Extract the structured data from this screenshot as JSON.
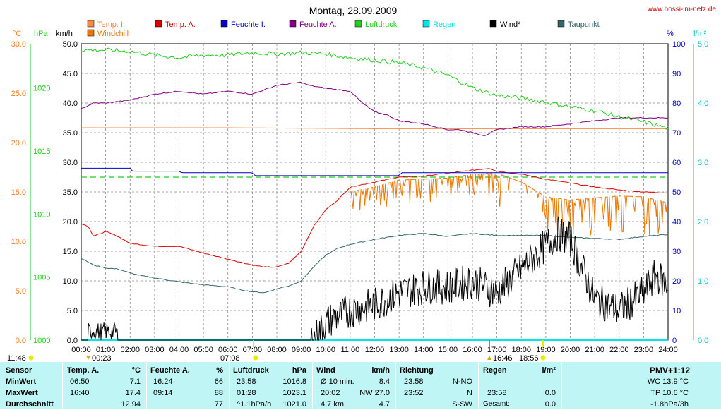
{
  "page": {
    "title": "Montag, 28.09.2009",
    "site": "www.hossi-im-netz.de"
  },
  "chart_data": {
    "type": "line",
    "title": "Montag, 28.09.2009",
    "x_ticks": [
      "00:00",
      "01:00",
      "02:00",
      "03:00",
      "04:00",
      "05:00",
      "06:00",
      "07:00",
      "08:00",
      "09:00",
      "10:00",
      "11:00",
      "12:00",
      "13:00",
      "14:00",
      "15:00",
      "16:00",
      "17:00",
      "18:00",
      "19:00",
      "20:00",
      "21:00",
      "22:00",
      "23:00",
      "24:00"
    ],
    "axes": {
      "temp": {
        "label": "°C",
        "min": 0,
        "max": 30,
        "ticks": [
          "0.0",
          "5.0",
          "10.0",
          "15.0",
          "20.0",
          "25.0",
          "30.0"
        ],
        "color": "#ff7f27"
      },
      "pressure": {
        "label": "hPa",
        "min": 1000,
        "max": 1023.5,
        "ticks": [
          "1000",
          "1005",
          "1010",
          "1015",
          "1020"
        ],
        "color": "#1ad01a"
      },
      "wind": {
        "label": "km/h",
        "min": 0,
        "max": 50,
        "ticks": [
          "0.0",
          "5.0",
          "10.0",
          "15.0",
          "20.0",
          "25.0",
          "30.0",
          "35.0",
          "40.0",
          "45.0",
          "50.0"
        ],
        "color": "#000000"
      },
      "humidity": {
        "label": "%",
        "min": 0,
        "max": 100,
        "ticks": [
          "0",
          "10",
          "20",
          "30",
          "40",
          "50",
          "60",
          "70",
          "80",
          "90",
          "100"
        ],
        "color": "#0000cc"
      },
      "rain": {
        "label": "l/m²",
        "min": 0,
        "max": 5,
        "ticks": [
          "0.0",
          "1.0",
          "2.0",
          "3.0",
          "4.0",
          "5.0"
        ],
        "color": "#00c8c8"
      }
    },
    "legend": [
      {
        "name": "Temp. I.",
        "color": "#ff8844"
      },
      {
        "name": "Temp. A.",
        "color": "#dd0000"
      },
      {
        "name": "Feuchte I.",
        "color": "#0000cc"
      },
      {
        "name": "Feuchte A.",
        "color": "#800080"
      },
      {
        "name": "Luftdruck",
        "color": "#22cc22"
      },
      {
        "name": "Regen",
        "color": "#00e5e5"
      },
      {
        "name": "Wind*",
        "color": "#000000"
      },
      {
        "name": "Taupunkt",
        "color": "#336666"
      },
      {
        "name": "Windchill",
        "color": "#ee7700"
      }
    ],
    "series": [
      {
        "key": "temp_in",
        "axis": "temp",
        "color": "#ff8844",
        "x": [
          0,
          6,
          12,
          18,
          24
        ],
        "y": [
          21.5,
          21.5,
          21.4,
          21.4,
          21.4
        ]
      },
      {
        "key": "temp_out",
        "axis": "temp",
        "color": "#dd0000",
        "x": [
          0,
          0.3,
          0.5,
          1,
          1.5,
          2,
          3,
          4,
          5,
          6,
          7,
          7.5,
          8,
          8.5,
          9,
          9.5,
          10,
          10.5,
          11,
          12,
          13,
          14,
          15,
          16,
          16.7,
          17,
          18,
          19,
          20,
          21,
          22,
          23,
          24
        ],
        "y": [
          11.8,
          11.5,
          10.5,
          11,
          10.5,
          9.8,
          9.5,
          9.5,
          8.8,
          8.2,
          7.6,
          7.4,
          7.4,
          7.8,
          9,
          11.5,
          13.2,
          14.2,
          15.5,
          16,
          16.5,
          16.6,
          16.9,
          17.2,
          17.4,
          17.1,
          16.8,
          16.3,
          15.9,
          15.5,
          15.2,
          15.0,
          14.9
        ]
      },
      {
        "key": "dewpoint",
        "axis": "temp",
        "color": "#336666",
        "x": [
          0,
          0.5,
          1,
          1.5,
          2,
          2.5,
          3,
          4,
          5,
          6,
          6.5,
          7,
          7.5,
          8,
          8.5,
          9,
          9.5,
          10,
          10.5,
          11,
          12,
          13,
          14,
          15,
          16,
          17,
          18,
          19,
          20,
          21,
          22,
          23,
          24
        ],
        "y": [
          8.3,
          7.6,
          7.3,
          7.2,
          6.8,
          6.5,
          6.3,
          5.9,
          5.6,
          5.4,
          5.1,
          4.9,
          4.8,
          5.2,
          5.5,
          6,
          7.4,
          8.6,
          9.3,
          9.7,
          10.2,
          10.6,
          10.8,
          10.5,
          10.8,
          10.6,
          10.6,
          10.6,
          10.4,
          10.3,
          10.2,
          10.5,
          10.7
        ]
      },
      {
        "key": "humidity_in",
        "axis": "humidity",
        "color": "#0000cc",
        "x": [
          0,
          2,
          2.1,
          4,
          4.1,
          7,
          7.1,
          13,
          13.1,
          24
        ],
        "y": [
          58,
          58,
          57,
          57,
          56.5,
          56.5,
          55.5,
          55.5,
          56.5,
          56.5
        ]
      },
      {
        "key": "humidity_out",
        "axis": "humidity",
        "color": "#800080",
        "x": [
          0,
          0.5,
          1,
          2,
          3,
          4,
          5,
          6,
          7,
          8,
          9,
          9.3,
          10,
          11,
          11.5,
          12,
          12.5,
          13,
          14,
          15,
          15.5,
          16,
          16.5,
          17,
          18,
          19,
          20,
          21,
          22,
          23,
          24
        ],
        "y": [
          78,
          80,
          80,
          81,
          83,
          84,
          83,
          84,
          83,
          86,
          87,
          86,
          85,
          84,
          80,
          77,
          76,
          74,
          73,
          71,
          71,
          70,
          69,
          71,
          72,
          72,
          73,
          74,
          75,
          75,
          75
        ]
      },
      {
        "key": "pressure",
        "axis": "pressure",
        "color": "#22cc22",
        "x": [
          0,
          1,
          2,
          3,
          4,
          5,
          6,
          7,
          8,
          9,
          10,
          11,
          12,
          13,
          14,
          15,
          16,
          17,
          18,
          19,
          20,
          21,
          22,
          23,
          24
        ],
        "y": [
          1023.0,
          1023.0,
          1022.9,
          1022.6,
          1022.4,
          1022.6,
          1022.6,
          1022.8,
          1022.7,
          1022.8,
          1022.7,
          1022.4,
          1022.2,
          1022.0,
          1021.6,
          1021.0,
          1020.0,
          1019.4,
          1019.2,
          1018.9,
          1018.5,
          1018.2,
          1017.7,
          1017.3,
          1016.8
        ]
      },
      {
        "key": "rain",
        "axis": "rain",
        "color": "#00e5e5",
        "x": [
          0,
          24
        ],
        "y": [
          0,
          0
        ]
      }
    ],
    "wind": {
      "axis": "wind",
      "color": "#000000",
      "x": [
        0,
        9.5,
        10,
        11,
        12,
        13,
        14,
        15,
        16,
        17,
        17.5,
        18,
        18.5,
        19,
        19.5,
        20,
        20.5,
        21,
        22,
        23,
        23.5,
        24
      ],
      "y": [
        0,
        0,
        3,
        5,
        6,
        8,
        9,
        9,
        10,
        8,
        10,
        12,
        14,
        16,
        18,
        17,
        12,
        7,
        5,
        8,
        11,
        9
      ]
    },
    "windchill": {
      "axis": "temp",
      "color": "#ee7700",
      "x": [
        11,
        12,
        13,
        14,
        15,
        16,
        17,
        18,
        19,
        20,
        21,
        22,
        23,
        24
      ],
      "y": [
        15,
        15.5,
        16.2,
        16.3,
        16.4,
        16.8,
        16.9,
        16.0,
        14.5,
        14.2,
        14.4,
        14.6,
        14.5,
        13.9
      ]
    },
    "dashed_line": {
      "axis": "wind",
      "value": 27.5,
      "color": "#22cc22"
    },
    "marker_labels": {
      "left_time": "11:48",
      "min_temp_time": "00:23",
      "sunrise": "07:08",
      "t16": "16:46",
      "t18": "18:56"
    }
  },
  "stats": {
    "col_sensor": {
      "title": "Sensor",
      "rows": [
        "MinWert",
        "MaxWert",
        "Durchschnitt"
      ]
    },
    "col_temp": {
      "title": "Temp. A.",
      "unit": "°C",
      "rows": [
        [
          "06:50",
          "7.1"
        ],
        [
          "16:40",
          "17.4"
        ],
        [
          "",
          "12.94"
        ]
      ]
    },
    "col_hum": {
      "title": "Feuchte A.",
      "unit": "%",
      "rows": [
        [
          "16:24",
          "66"
        ],
        [
          "09:14",
          "88"
        ],
        [
          "",
          "77"
        ]
      ]
    },
    "col_pres": {
      "title": "Luftdruck",
      "unit": "hPa",
      "rows": [
        [
          "23:58",
          "1016.8"
        ],
        [
          "01:28",
          "1023.1"
        ],
        [
          "^1.1hPa/h",
          "1021.0"
        ]
      ]
    },
    "col_wind": {
      "title": "Wind",
      "unit": "km/h",
      "rows": [
        [
          "Ø 10 min.",
          "8.4"
        ],
        [
          "20:02",
          "NW 27.0"
        ],
        [
          "4.7 km",
          "4.7"
        ]
      ]
    },
    "col_dir": {
      "title": "Richtung",
      "unit": "",
      "rows": [
        [
          "23:58",
          "N-NO"
        ],
        [
          "23:52",
          "N"
        ],
        [
          "",
          "S-SW"
        ]
      ]
    },
    "col_rain": {
      "title": "Regen",
      "unit": "l/m²",
      "rows": [
        [
          "",
          ""
        ],
        [
          "23:58",
          "0.0"
        ],
        [
          "Gesamt:",
          "0.0"
        ]
      ]
    },
    "col_pmv": {
      "title": "PMV+1:12",
      "rows": [
        "WC 13.9 °C",
        "TP 10.6 °C",
        "-1.8hPa/3h"
      ]
    }
  }
}
